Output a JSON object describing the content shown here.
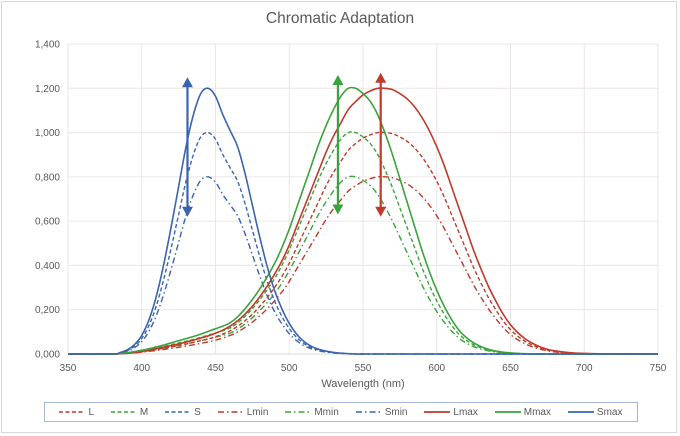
{
  "chart_data": {
    "type": "line",
    "title": "Chromatic Adaptation",
    "xlabel": "Wavelength (nm)",
    "ylabel": "",
    "xlim": [
      350,
      750
    ],
    "ylim": [
      0,
      1.4
    ],
    "x_ticks": [
      "350",
      "400",
      "450",
      "500",
      "550",
      "600",
      "650",
      "700",
      "750"
    ],
    "y_ticks": [
      "0,000",
      "0,200",
      "0,400",
      "0,600",
      "0,800",
      "1,000",
      "1,200",
      "1,400"
    ],
    "grid": true,
    "legend_position": "bottom",
    "colors": {
      "L": "#c0392b",
      "M": "#3ba33b",
      "S": "#3b64ad"
    },
    "x": [
      350,
      380,
      385,
      390,
      395,
      400,
      405,
      410,
      415,
      420,
      425,
      430,
      435,
      440,
      445,
      450,
      455,
      460,
      465,
      470,
      475,
      480,
      485,
      490,
      495,
      500,
      505,
      510,
      515,
      520,
      525,
      530,
      535,
      540,
      545,
      550,
      555,
      560,
      565,
      570,
      575,
      580,
      585,
      590,
      595,
      600,
      605,
      610,
      615,
      620,
      625,
      630,
      635,
      640,
      645,
      650,
      655,
      660,
      665,
      670,
      675,
      680,
      690,
      700,
      720,
      750
    ],
    "base_curves": {
      "L": [
        0,
        0,
        0.001,
        0.003,
        0.006,
        0.01,
        0.015,
        0.02,
        0.026,
        0.032,
        0.038,
        0.045,
        0.052,
        0.06,
        0.068,
        0.078,
        0.09,
        0.105,
        0.125,
        0.15,
        0.18,
        0.215,
        0.255,
        0.3,
        0.35,
        0.41,
        0.48,
        0.55,
        0.62,
        0.69,
        0.76,
        0.82,
        0.87,
        0.92,
        0.95,
        0.975,
        0.99,
        1.0,
        1.0,
        0.995,
        0.98,
        0.96,
        0.93,
        0.89,
        0.84,
        0.78,
        0.71,
        0.63,
        0.55,
        0.47,
        0.39,
        0.32,
        0.255,
        0.2,
        0.15,
        0.11,
        0.08,
        0.057,
        0.04,
        0.027,
        0.018,
        0.012,
        0.005,
        0.002,
        0,
        0
      ],
      "M": [
        0,
        0,
        0.002,
        0.005,
        0.009,
        0.014,
        0.02,
        0.027,
        0.034,
        0.042,
        0.05,
        0.058,
        0.066,
        0.075,
        0.085,
        0.095,
        0.105,
        0.118,
        0.14,
        0.17,
        0.205,
        0.245,
        0.29,
        0.34,
        0.4,
        0.47,
        0.55,
        0.63,
        0.71,
        0.79,
        0.86,
        0.92,
        0.97,
        1.0,
        1.0,
        0.98,
        0.95,
        0.9,
        0.83,
        0.75,
        0.66,
        0.57,
        0.48,
        0.39,
        0.31,
        0.24,
        0.18,
        0.13,
        0.09,
        0.062,
        0.042,
        0.028,
        0.018,
        0.011,
        0.007,
        0.004,
        0.002,
        0.001,
        0,
        0,
        0,
        0,
        0,
        0,
        0,
        0
      ],
      "S": [
        0,
        0,
        0.005,
        0.015,
        0.035,
        0.07,
        0.13,
        0.22,
        0.34,
        0.48,
        0.63,
        0.78,
        0.9,
        0.98,
        1.0,
        0.97,
        0.9,
        0.84,
        0.78,
        0.68,
        0.56,
        0.44,
        0.33,
        0.24,
        0.17,
        0.115,
        0.075,
        0.047,
        0.029,
        0.018,
        0.011,
        0.006,
        0.003,
        0.001,
        0,
        0,
        0,
        0,
        0,
        0,
        0,
        0,
        0,
        0,
        0,
        0,
        0,
        0,
        0,
        0,
        0,
        0,
        0,
        0,
        0,
        0,
        0,
        0,
        0,
        0,
        0,
        0,
        0,
        0,
        0,
        0
      ]
    },
    "series": [
      {
        "name": "L",
        "cone": "L",
        "scale": 1.0,
        "style": "dash"
      },
      {
        "name": "M",
        "cone": "M",
        "scale": 1.0,
        "style": "dash"
      },
      {
        "name": "S",
        "cone": "S",
        "scale": 1.0,
        "style": "dash"
      },
      {
        "name": "Lmin",
        "cone": "L",
        "scale": 0.8,
        "style": "dashdot"
      },
      {
        "name": "Mmin",
        "cone": "M",
        "scale": 0.8,
        "style": "dashdot"
      },
      {
        "name": "Smin",
        "cone": "S",
        "scale": 0.8,
        "style": "dashdot"
      },
      {
        "name": "Lmax",
        "cone": "L",
        "scale": 1.2,
        "style": "solid"
      },
      {
        "name": "Mmax",
        "cone": "M",
        "scale": 1.2,
        "style": "solid"
      },
      {
        "name": "Smax",
        "cone": "S",
        "scale": 1.2,
        "style": "solid"
      }
    ],
    "annotations": [
      {
        "type": "double-arrow",
        "cone": "S",
        "x": 431,
        "y_from": 0.62,
        "y_to": 1.25
      },
      {
        "type": "double-arrow",
        "cone": "M",
        "x": 533,
        "y_from": 0.63,
        "y_to": 1.26
      },
      {
        "type": "double-arrow",
        "cone": "L",
        "x": 562,
        "y_from": 0.62,
        "y_to": 1.27
      }
    ]
  }
}
